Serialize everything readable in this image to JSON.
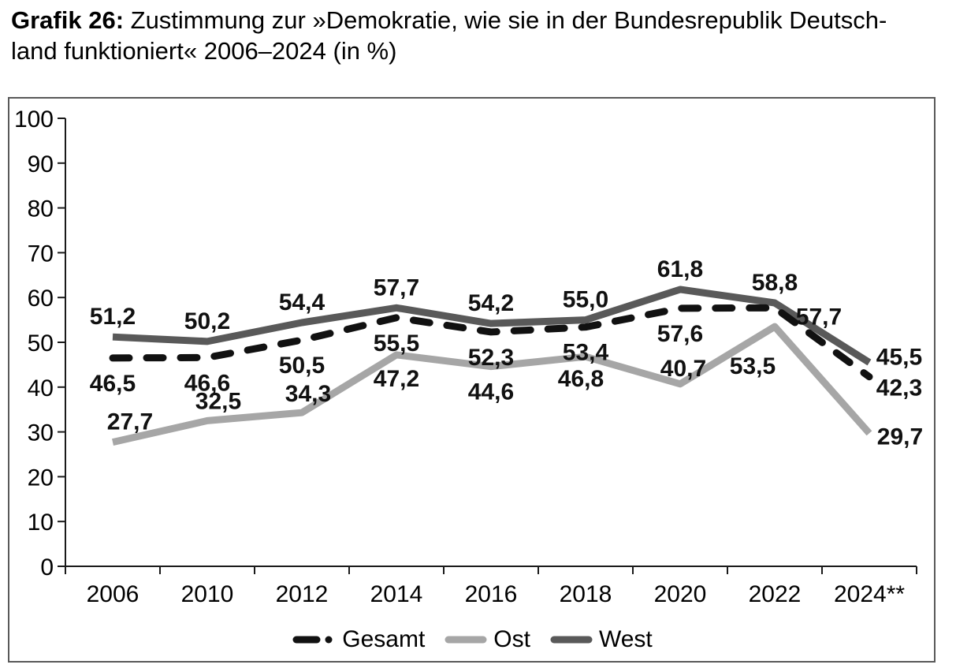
{
  "header": {
    "bold": "Grafik 26:",
    "line1_rest": " Zustimmung zur »Demokratie, wie sie in der Bundesrepublik Deutsch-",
    "line2": "land funktioniert« 2006–2024 (in %)"
  },
  "chart_data": {
    "type": "line",
    "title": "Zustimmung zur »Demokratie, wie sie in der Bundesrepublik Deutschland funktioniert« 2006–2024 (in %)",
    "categories": [
      "2006",
      "2010",
      "2012",
      "2014",
      "2016",
      "2018",
      "2020",
      "2022",
      "2024**"
    ],
    "series": [
      {
        "name": "Gesamt",
        "style": "dashed",
        "color": "#111111",
        "values": [
          46.5,
          46.6,
          50.5,
          55.5,
          52.3,
          53.4,
          57.6,
          57.7,
          42.3
        ]
      },
      {
        "name": "Ost",
        "style": "solid",
        "color": "#a6a6a6",
        "values": [
          27.7,
          32.5,
          34.3,
          47.2,
          44.6,
          46.8,
          40.7,
          53.5,
          29.7
        ]
      },
      {
        "name": "West",
        "style": "solid",
        "color": "#595959",
        "values": [
          51.2,
          50.2,
          54.4,
          57.7,
          54.2,
          55.0,
          61.8,
          58.8,
          45.5
        ]
      }
    ],
    "ylim": [
      0,
      100
    ],
    "ytick_step": 10,
    "grid": false,
    "legend_position": "bottom",
    "decimal_separator": ",",
    "axis_color": "#1a1a1a",
    "label_color": "#111111",
    "frame_color": "#595959"
  }
}
